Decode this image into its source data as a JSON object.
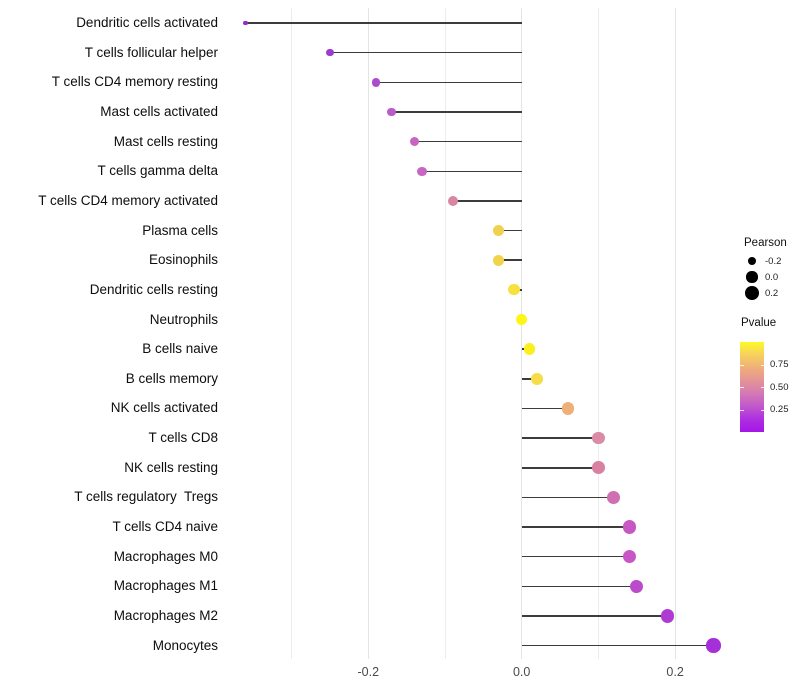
{
  "chart_data": {
    "type": "lollipop",
    "title": "",
    "xlabel": "",
    "ylabel": "",
    "x_axis": {
      "range": [
        -0.38,
        0.28
      ],
      "major_ticks": [
        {
          "value": -0.2,
          "label": "-0.2"
        },
        {
          "value": 0.0,
          "label": "0.0"
        },
        {
          "value": 0.2,
          "label": "0.2"
        }
      ],
      "minor_ticks": [
        -0.3,
        -0.1,
        0.1
      ]
    },
    "rows": [
      {
        "label": "Dendritic cells activated",
        "pearson": -0.36,
        "color": "#9629CF"
      },
      {
        "label": "T cells follicular helper",
        "pearson": -0.25,
        "color": "#9D3BD0"
      },
      {
        "label": "T cells CD4 memory resting",
        "pearson": -0.19,
        "color": "#AB4CCC"
      },
      {
        "label": "Mast cells activated",
        "pearson": -0.17,
        "color": "#BA5CC8"
      },
      {
        "label": "Mast cells resting",
        "pearson": -0.14,
        "color": "#C765C0"
      },
      {
        "label": "T cells gamma delta",
        "pearson": -0.13,
        "color": "#C767C1"
      },
      {
        "label": "T cells CD4 memory activated",
        "pearson": -0.09,
        "color": "#D985A4"
      },
      {
        "label": "Plasma cells",
        "pearson": -0.03,
        "color": "#F0D14D"
      },
      {
        "label": "Eosinophils",
        "pearson": -0.03,
        "color": "#F1D44C"
      },
      {
        "label": "Dendritic cells resting",
        "pearson": -0.01,
        "color": "#F8E13E"
      },
      {
        "label": "Neutrophils",
        "pearson": 0.0,
        "color": "#FEF613"
      },
      {
        "label": "B cells naive",
        "pearson": 0.01,
        "color": "#FCF01C"
      },
      {
        "label": "B cells memory",
        "pearson": 0.02,
        "color": "#F5DD49"
      },
      {
        "label": "NK cells activated",
        "pearson": 0.06,
        "color": "#EFB077"
      },
      {
        "label": "T cells CD8",
        "pearson": 0.1,
        "color": "#DA8BA6"
      },
      {
        "label": "NK cells resting",
        "pearson": 0.1,
        "color": "#D981A1"
      },
      {
        "label": "T cells regulatory  Tregs",
        "pearson": 0.12,
        "color": "#D06FB2"
      },
      {
        "label": "T cells CD4 naive",
        "pearson": 0.14,
        "color": "#C658C3"
      },
      {
        "label": "Macrophages M0",
        "pearson": 0.14,
        "color": "#C757C6"
      },
      {
        "label": "Macrophages M1",
        "pearson": 0.15,
        "color": "#BB4BCB"
      },
      {
        "label": "Macrophages M2",
        "pearson": 0.19,
        "color": "#AE3BD2"
      },
      {
        "label": "Monocytes",
        "pearson": 0.25,
        "color": "#A52FD9"
      }
    ],
    "legend": {
      "pearson": {
        "title": "Pearson",
        "dot_color": "#000000",
        "sizes": [
          {
            "value": -0.2,
            "label": "-0.2"
          },
          {
            "value": 0.0,
            "label": "0.0"
          },
          {
            "value": 0.2,
            "label": "0.2"
          }
        ]
      },
      "pvalue": {
        "title": "Pvalue",
        "ticks": [
          {
            "value": 0.75,
            "label": "0.75"
          },
          {
            "value": 0.5,
            "label": "0.50"
          },
          {
            "value": 0.25,
            "label": "0.25"
          }
        ],
        "gradient_top_to_bottom": [
          "#FCFA25",
          "#F6D05E",
          "#EFAF79",
          "#E49497",
          "#D379B4",
          "#C158CC",
          "#AE2FE0",
          "#A416E8"
        ]
      }
    },
    "stick_color": "#3C3C3C",
    "grid_minor_color": "#ECECEC",
    "grid_major_color": "#E4E4E4"
  }
}
